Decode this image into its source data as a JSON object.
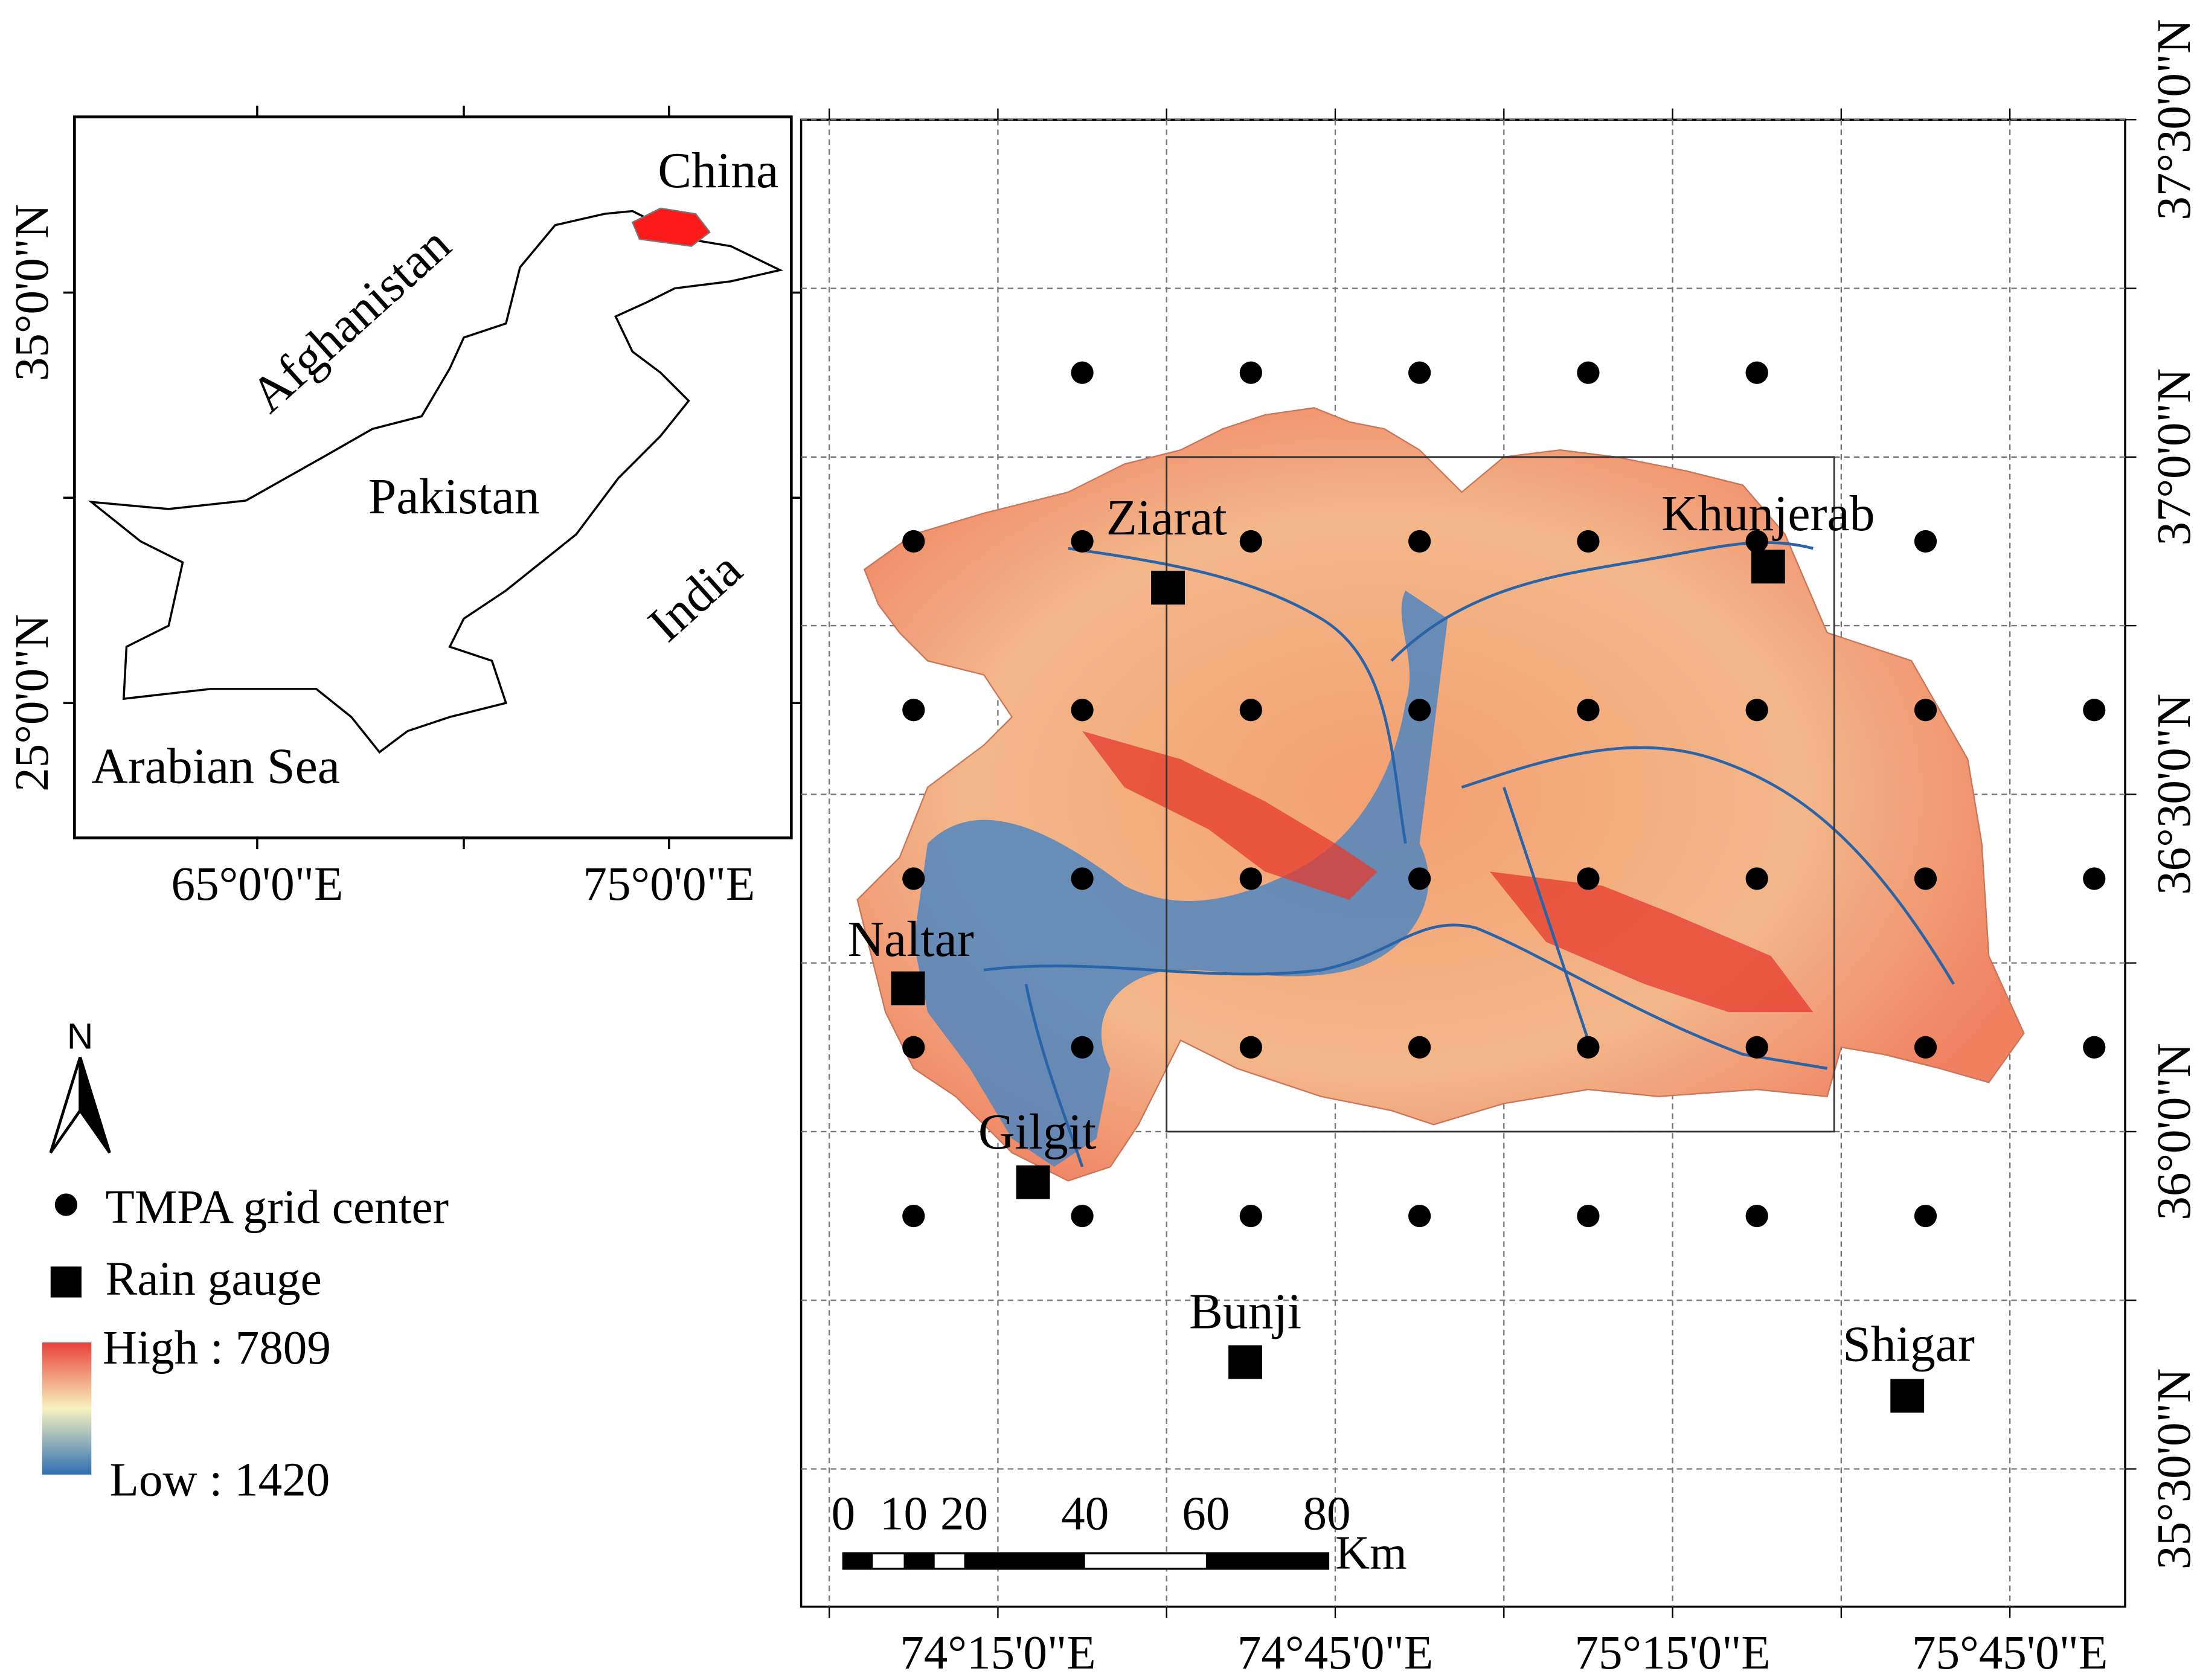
{
  "inset": {
    "labels": [
      "China",
      "Afghanistan",
      "Pakistan",
      "India",
      "Arabian Sea"
    ],
    "lat_labels": [
      "35°0'0\"N",
      "25°0'0\"N"
    ],
    "lon_labels": [
      "65°0'0\"E",
      "75°0'0\"E"
    ]
  },
  "map": {
    "lat_labels": [
      "37°30'0\"N",
      "37°0'0\"N",
      "36°30'0\"N",
      "36°0'0\"N",
      "35°30'0\"N"
    ],
    "lon_labels": [
      "74°15'0\"E",
      "74°45'0\"E",
      "75°15'0\"E",
      "75°45'0\"E"
    ],
    "stations": [
      "Ziarat",
      "Khunjerab",
      "Naltar",
      "Gilgit",
      "Bunji",
      "Shigar"
    ]
  },
  "legend": {
    "north": "N",
    "grid_center": "TMPA grid center",
    "rain_gauge": "Rain gauge",
    "high": "High : 7809",
    "low": "Low : 1420"
  },
  "scale_bar": {
    "labels": [
      "0",
      "10",
      "20",
      "40",
      "60",
      "80"
    ],
    "unit": "Km"
  }
}
